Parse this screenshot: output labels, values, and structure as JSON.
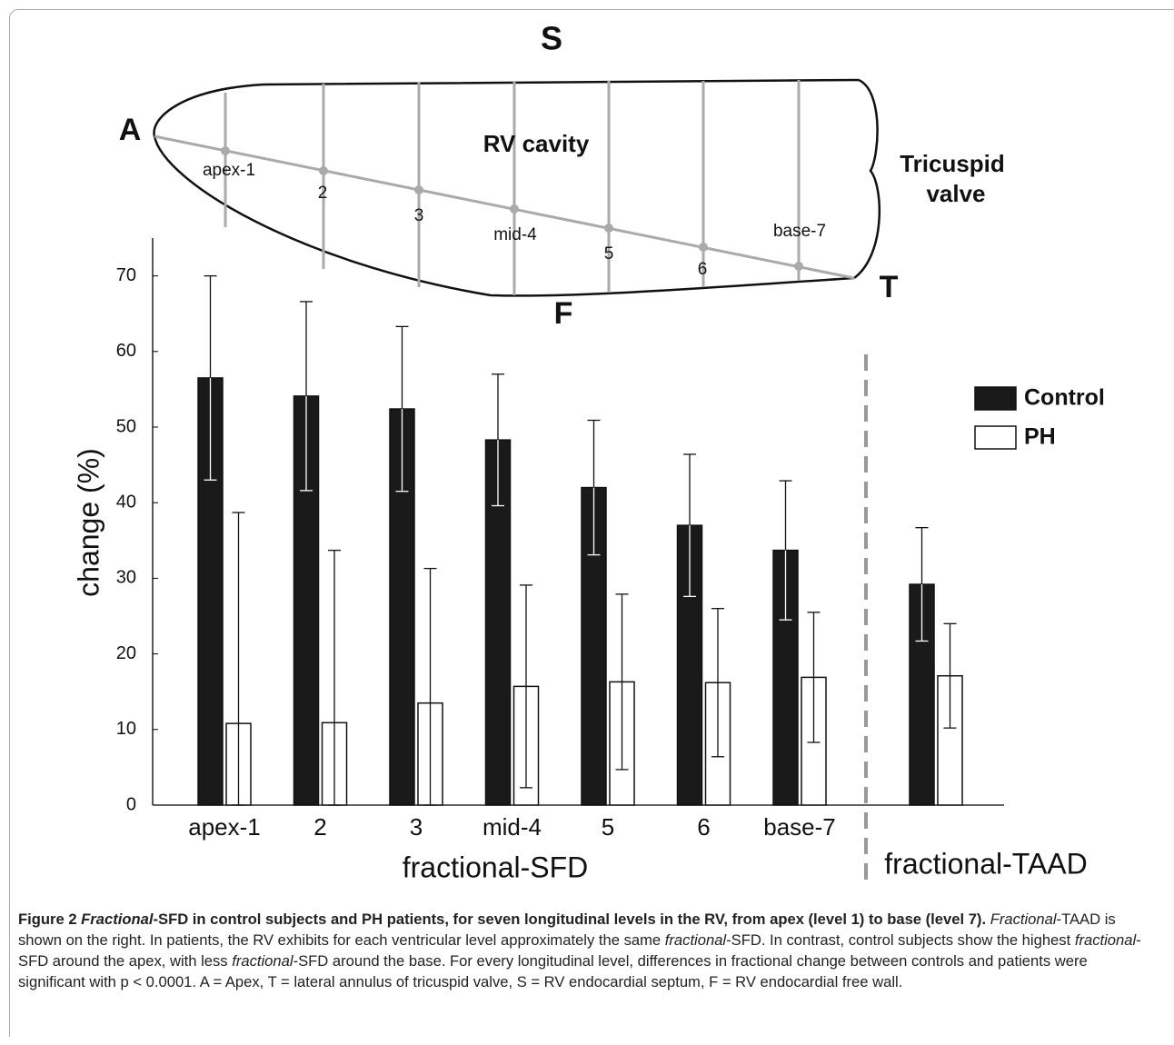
{
  "chart_data": {
    "type": "bar",
    "ylabel": "change (%)",
    "categories": [
      "apex-1",
      "2",
      "3",
      "mid-4",
      "5",
      "6",
      "base-7",
      null
    ],
    "group_labels": [
      "fractional-SFD",
      "fractional-TAAD"
    ],
    "series": [
      {
        "name": "Control",
        "color": "#1a1a1a",
        "values": [
          56.5,
          54.1,
          52.4,
          48.3,
          42,
          37,
          33.7,
          29.2
        ],
        "errors": [
          13.5,
          12.5,
          10.9,
          8.7,
          8.9,
          9.4,
          9.2,
          7.5
        ]
      },
      {
        "name": "PH",
        "color": "#ffffff",
        "values": [
          10.8,
          10.9,
          13.5,
          15.7,
          16.3,
          16.2,
          16.9,
          17.1
        ],
        "errors": [
          27.9,
          22.8,
          17.8,
          13.4,
          11.6,
          9.8,
          8.6,
          6.9
        ]
      }
    ],
    "ylim": [
      0,
      75
    ],
    "yticks": [
      0,
      10,
      20,
      30,
      40,
      50,
      60,
      70
    ],
    "legend": "right",
    "grid": false
  },
  "diagram": {
    "septum": "S",
    "apex": "A",
    "free_wall": "F",
    "annulus": "T",
    "cavity": "RV cavity",
    "valve": [
      "Tricuspid",
      "valve"
    ],
    "levels": [
      "apex-1",
      "2",
      "3",
      "mid-4",
      "5",
      "6",
      "base-7"
    ]
  },
  "caption": [
    "Figure 2",
    "Fractional",
    "-SFD in control subjects and PH patients, for seven longitudinal levels in the RV, from apex (level 1) to base (level 7).",
    "Fractional",
    "-TAAD is shown on the right. In patients, the RV exhibits for each ventricular level approximately the same",
    "fractional",
    "-SFD. In contrast, control subjects show the highest",
    "fractional",
    "-SFD around the apex, with less",
    "fractional",
    "-SFD around the base. For every longitudinal level, differences in fractional change between controls and patients were significant with p < 0.0001. A = Apex, T = lateral annulus of tricuspid valve, S = RV endocardial septum, F = RV endocardial free wall."
  ]
}
